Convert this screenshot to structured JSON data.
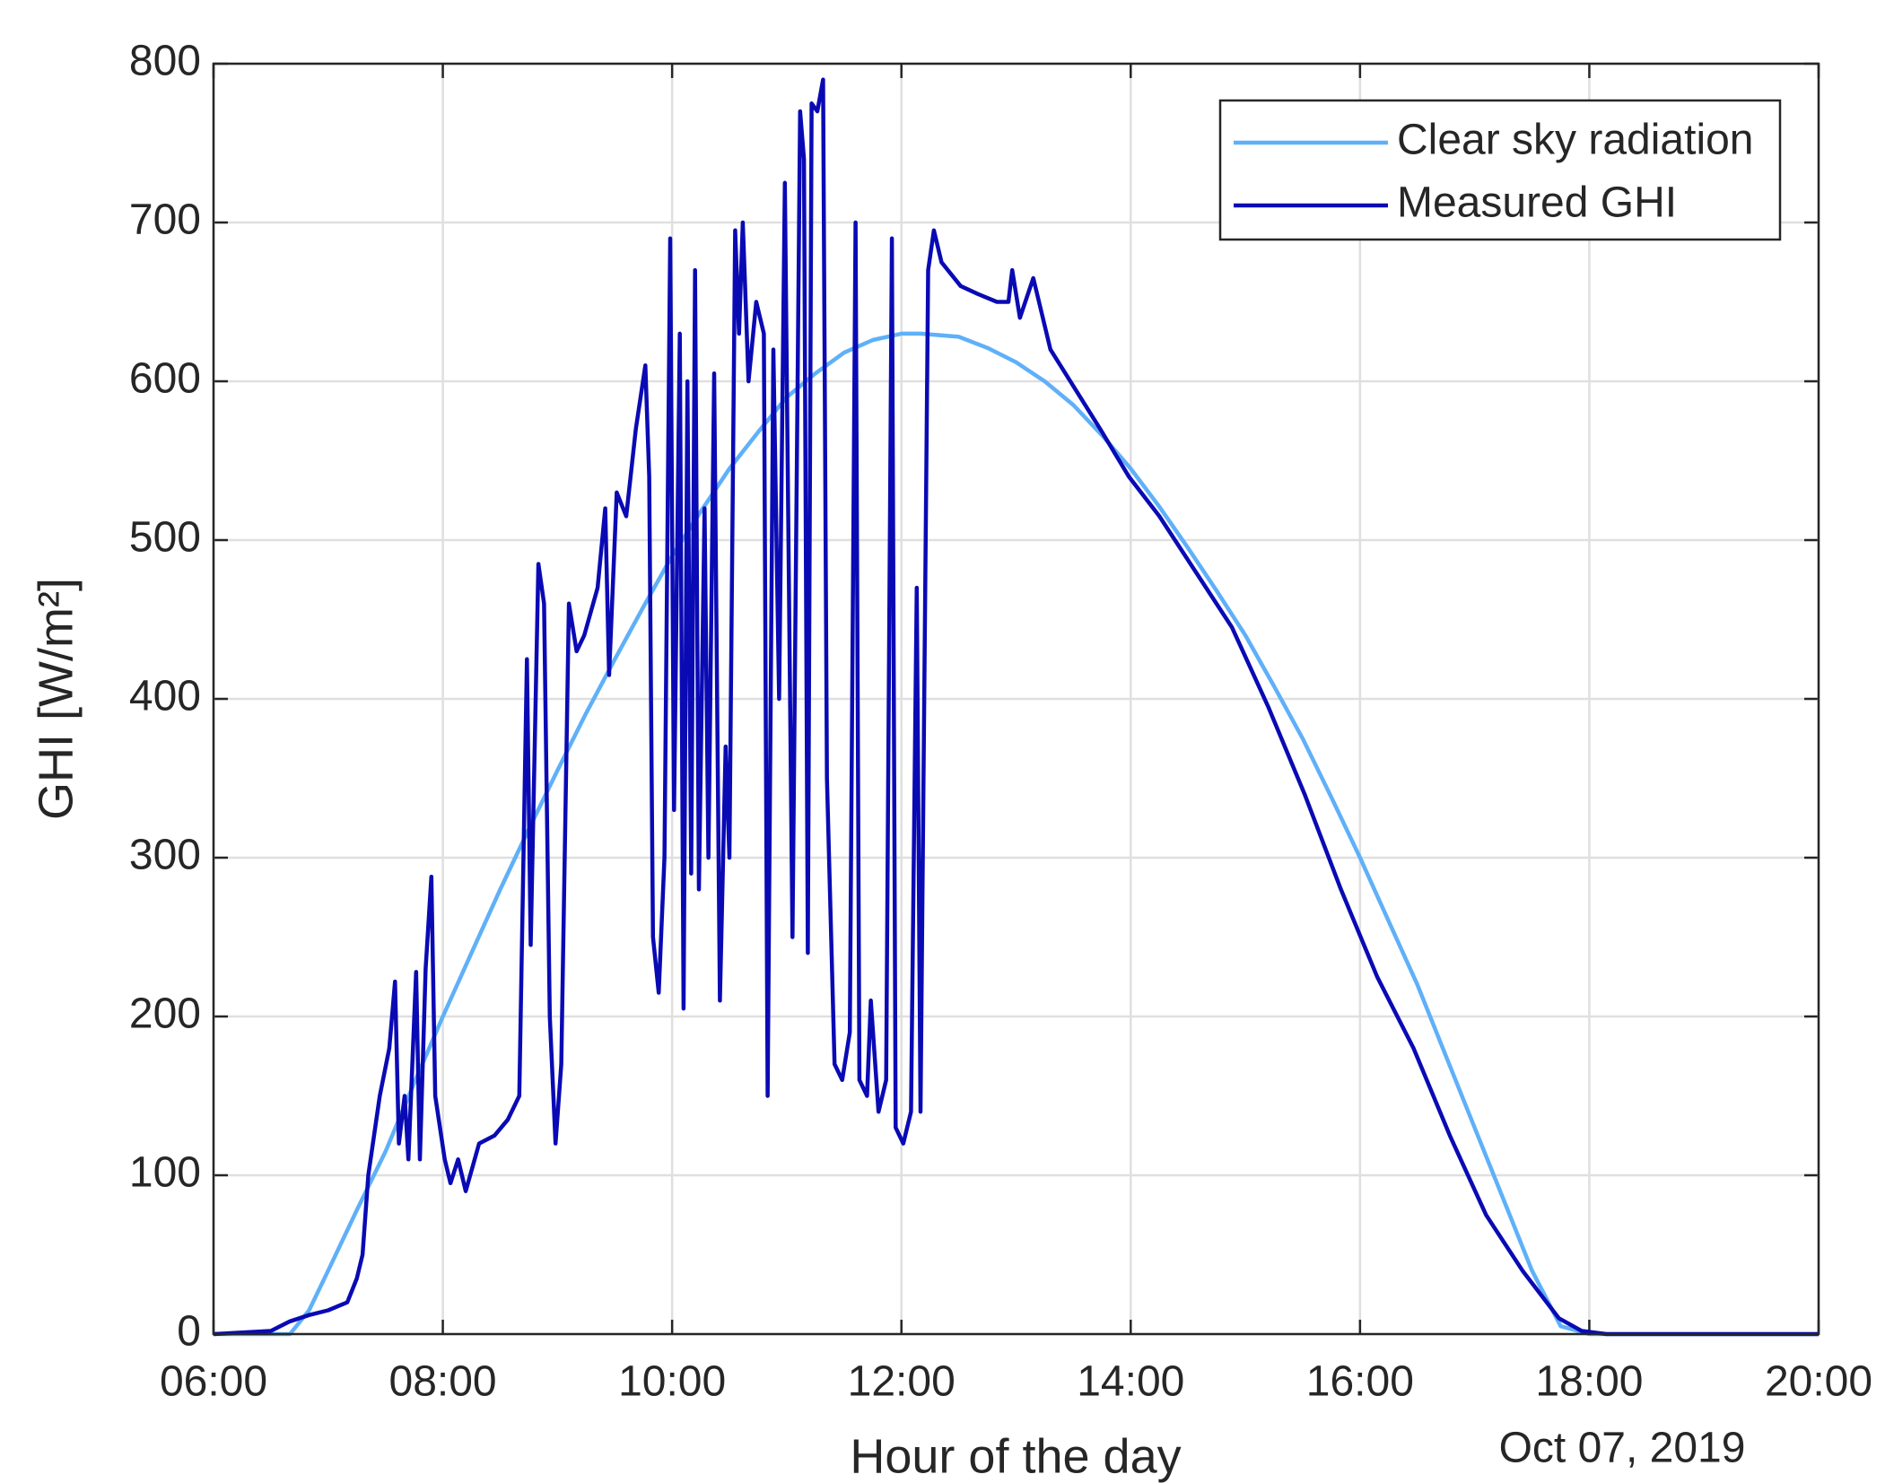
{
  "chart_data": {
    "type": "line",
    "xlabel": "Hour of the day",
    "ylabel": "GHI [W/m²]",
    "date_label": "Oct 07, 2019",
    "xlim": [
      "06:00",
      "20:00"
    ],
    "xticks": [
      "06:00",
      "08:00",
      "10:00",
      "12:00",
      "14:00",
      "16:00",
      "18:00",
      "20:00"
    ],
    "ylim": [
      0,
      800
    ],
    "yticks": [
      0,
      100,
      200,
      300,
      400,
      500,
      600,
      700,
      800
    ],
    "grid": true,
    "legend": "upper right",
    "series": [
      {
        "name": "Clear sky radiation",
        "color": "#5fb0f8",
        "x": [
          "06:00",
          "06:40",
          "06:50",
          "07:00",
          "07:15",
          "07:30",
          "07:45",
          "08:00",
          "08:15",
          "08:30",
          "08:45",
          "09:00",
          "09:15",
          "09:30",
          "09:45",
          "10:00",
          "10:15",
          "10:30",
          "10:45",
          "11:00",
          "11:15",
          "11:30",
          "11:45",
          "12:00",
          "12:10",
          "12:30",
          "12:45",
          "13:00",
          "13:15",
          "13:30",
          "13:45",
          "14:00",
          "14:15",
          "14:30",
          "14:45",
          "15:00",
          "15:15",
          "15:30",
          "15:45",
          "16:00",
          "16:15",
          "16:30",
          "16:45",
          "17:00",
          "17:15",
          "17:30",
          "17:45",
          "18:00",
          "20:00"
        ],
        "values": [
          0,
          0,
          15,
          40,
          78,
          115,
          158,
          200,
          240,
          280,
          318,
          355,
          391,
          425,
          458,
          490,
          518,
          545,
          568,
          590,
          605,
          618,
          626,
          630,
          630,
          628,
          621,
          612,
          600,
          585,
          566,
          545,
          521,
          495,
          468,
          440,
          408,
          375,
          338,
          300,
          260,
          220,
          175,
          130,
          85,
          40,
          5,
          0,
          0
        ]
      },
      {
        "name": "Measured GHI",
        "color": "#0a0ab4",
        "x": [
          "06:00",
          "06:30",
          "06:40",
          "06:50",
          "07:00",
          "07:10",
          "07:15",
          "07:18",
          "07:21",
          "07:27",
          "07:32",
          "07:35",
          "07:37",
          "07:40",
          "07:42",
          "07:46",
          "07:48",
          "07:51",
          "07:54",
          "07:56",
          "08:01",
          "08:04",
          "08:08",
          "08:12",
          "08:19",
          "08:27",
          "08:34",
          "08:40",
          "08:44",
          "08:46",
          "08:50",
          "08:53",
          "08:56",
          "08:59",
          "09:02",
          "09:06",
          "09:10",
          "09:14",
          "09:21",
          "09:25",
          "09:27",
          "09:31",
          "09:36",
          "09:41",
          "09:46",
          "09:48",
          "09:50",
          "09:53",
          "09:56",
          "09:59",
          "10:01",
          "10:04",
          "10:06",
          "10:08",
          "10:10",
          "10:12",
          "10:14",
          "10:17",
          "10:19",
          "10:22",
          "10:25",
          "10:28",
          "10:30",
          "10:33",
          "10:35",
          "10:37",
          "10:40",
          "10:44",
          "10:48",
          "10:50",
          "10:53",
          "10:56",
          "10:59",
          "11:03",
          "11:07",
          "11:09",
          "11:11",
          "11:13",
          "11:16",
          "11:19",
          "11:21",
          "11:25",
          "11:29",
          "11:33",
          "11:36",
          "11:38",
          "11:42",
          "11:44",
          "11:48",
          "11:52",
          "11:55",
          "11:57",
          "12:01",
          "12:05",
          "12:08",
          "12:10",
          "12:12",
          "12:14",
          "12:17",
          "12:21",
          "12:31",
          "12:40",
          "12:50",
          "12:56",
          "12:58",
          "13:02",
          "13:09",
          "13:18",
          "13:31",
          "13:44",
          "13:59",
          "14:15",
          "14:34",
          "14:53",
          "15:12",
          "15:31",
          "15:50",
          "16:09",
          "16:28",
          "16:47",
          "17:06",
          "17:25",
          "17:44",
          "17:56",
          "18:09",
          "20:00"
        ],
        "values": [
          0,
          2,
          8,
          12,
          15,
          20,
          35,
          50,
          100,
          150,
          180,
          222,
          120,
          150,
          110,
          228,
          110,
          230,
          288,
          150,
          110,
          95,
          110,
          90,
          120,
          125,
          135,
          150,
          425,
          245,
          485,
          460,
          200,
          120,
          170,
          460,
          430,
          440,
          470,
          520,
          415,
          530,
          515,
          570,
          610,
          540,
          250,
          215,
          300,
          690,
          330,
          630,
          205,
          600,
          290,
          670,
          280,
          520,
          300,
          605,
          210,
          370,
          300,
          695,
          630,
          700,
          600,
          650,
          630,
          150,
          620,
          400,
          725,
          250,
          770,
          740,
          240,
          775,
          770,
          790,
          350,
          170,
          160,
          190,
          700,
          160,
          150,
          210,
          140,
          160,
          690,
          130,
          120,
          140,
          470,
          140,
          410,
          670,
          695,
          675,
          660,
          655,
          650,
          650,
          670,
          640,
          665,
          620,
          595,
          570,
          540,
          515,
          480,
          445,
          395,
          340,
          280,
          225,
          180,
          125,
          75,
          40,
          10,
          2,
          0,
          0
        ]
      }
    ]
  }
}
